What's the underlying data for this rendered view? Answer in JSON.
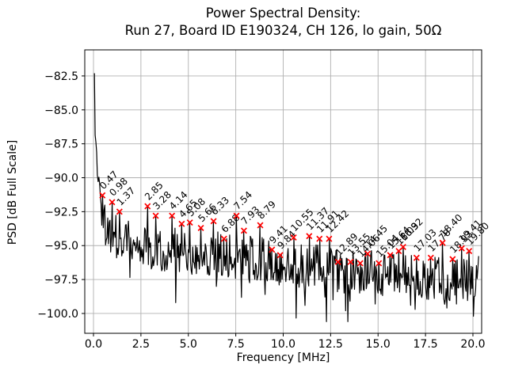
{
  "chart_data": {
    "type": "line",
    "title_line1": "Power Spectral Density:",
    "title_line2": "Run 27, Board ID E190324, CH 126, lo gain, 50Ω",
    "xlabel": "Frequency [MHz]",
    "ylabel": "PSD [dB Full Scale]",
    "x_ticks": [
      0.0,
      2.5,
      5.0,
      7.5,
      10.0,
      12.5,
      15.0,
      17.5,
      20.0
    ],
    "x_tick_labels": [
      "0.0",
      "2.5",
      "5.0",
      "7.5",
      "10.0",
      "12.5",
      "15.0",
      "17.5",
      "20.0"
    ],
    "y_ticks": [
      -82.5,
      -85.0,
      -87.5,
      -90.0,
      -92.5,
      -95.0,
      -97.5,
      -100.0
    ],
    "y_tick_labels": [
      "−82.5",
      "−85.0",
      "−87.5",
      "−90.0",
      "−92.5",
      "−95.0",
      "−97.5",
      "−100.0"
    ],
    "xlim": [
      -0.46,
      20.46
    ],
    "ylim": [
      -101.46,
      -80.58
    ],
    "grid": true,
    "grid_color": "#b0b0b0",
    "line_color": "#000000",
    "marker_color": "#ff0000",
    "marker_style": "x",
    "start_point": {
      "f": 0.05,
      "db": -82.3
    },
    "early_points": [
      [
        0.05,
        -82.3
      ],
      [
        0.1,
        -87.8
      ],
      [
        0.15,
        -87.6
      ],
      [
        0.22,
        -90.3
      ],
      [
        0.3,
        -89.9
      ],
      [
        0.38,
        -91.8
      ],
      [
        0.45,
        -92.4
      ]
    ],
    "baseline": [
      [
        0.5,
        -93.3
      ],
      [
        1.0,
        -94.2
      ],
      [
        2.0,
        -94.9
      ],
      [
        4.0,
        -95.3
      ],
      [
        6.0,
        -95.6
      ],
      [
        8.0,
        -95.8
      ],
      [
        10.0,
        -96.3
      ],
      [
        12.0,
        -96.6
      ],
      [
        14.0,
        -97.0
      ],
      [
        16.0,
        -97.2
      ],
      [
        18.0,
        -97.4
      ],
      [
        20.3,
        -97.4
      ]
    ],
    "noise_amplitude_db": 3.4,
    "deep_dips": [
      [
        4.35,
        -99.2
      ],
      [
        9.03,
        -98.6
      ],
      [
        12.62,
        -99.0
      ],
      [
        13.42,
        -100.6
      ],
      [
        14.85,
        -99.3
      ],
      [
        16.7,
        -99.4
      ],
      [
        18.62,
        -99.6
      ],
      [
        19.12,
        -99.3
      ]
    ],
    "peaks": [
      {
        "f": 0.47,
        "db": -91.3,
        "label": "0.47"
      },
      {
        "f": 0.98,
        "db": -91.8,
        "label": "0.98"
      },
      {
        "f": 1.37,
        "db": -92.5,
        "label": "1.37"
      },
      {
        "f": 2.85,
        "db": -92.1,
        "label": "2.85"
      },
      {
        "f": 3.28,
        "db": -92.8,
        "label": "3.28"
      },
      {
        "f": 4.14,
        "db": -92.8,
        "label": "4.14"
      },
      {
        "f": 4.65,
        "db": -93.4,
        "label": "4.65"
      },
      {
        "f": 5.08,
        "db": -93.3,
        "label": "5.08"
      },
      {
        "f": 5.66,
        "db": -93.7,
        "label": "5.66"
      },
      {
        "f": 6.33,
        "db": -93.2,
        "label": "6.33"
      },
      {
        "f": 6.88,
        "db": -94.5,
        "label": "6.88"
      },
      {
        "f": 7.54,
        "db": -92.8,
        "label": "7.54"
      },
      {
        "f": 7.93,
        "db": -93.9,
        "label": "7.93"
      },
      {
        "f": 8.79,
        "db": -93.5,
        "label": "8.79"
      },
      {
        "f": 9.41,
        "db": -95.3,
        "label": "9.41"
      },
      {
        "f": 9.84,
        "db": -95.7,
        "label": "9.84"
      },
      {
        "f": 10.55,
        "db": -94.4,
        "label": "10.55"
      },
      {
        "f": 11.37,
        "db": -94.3,
        "label": "11.37"
      },
      {
        "f": 11.91,
        "db": -94.5,
        "label": "11.91"
      },
      {
        "f": 12.42,
        "db": -94.5,
        "label": "12.42"
      },
      {
        "f": 12.89,
        "db": -96.2,
        "label": "12.89"
      },
      {
        "f": 13.55,
        "db": -96.2,
        "label": "13.55"
      },
      {
        "f": 14.06,
        "db": -96.3,
        "label": "14.06"
      },
      {
        "f": 14.45,
        "db": -95.6,
        "label": "14.45"
      },
      {
        "f": 15.04,
        "db": -96.3,
        "label": "15.04"
      },
      {
        "f": 15.64,
        "db": -95.7,
        "label": "15.64"
      },
      {
        "f": 16.09,
        "db": -95.4,
        "label": "16.09"
      },
      {
        "f": 16.32,
        "db": -95.1,
        "label": "16.32"
      },
      {
        "f": 17.03,
        "db": -95.9,
        "label": "17.03"
      },
      {
        "f": 17.78,
        "db": -95.9,
        "label": "17.78"
      },
      {
        "f": 18.4,
        "db": -94.8,
        "label": "18.40"
      },
      {
        "f": 18.93,
        "db": -96.0,
        "label": "18.93"
      },
      {
        "f": 19.41,
        "db": -95.2,
        "label": "19.41"
      },
      {
        "f": 19.8,
        "db": -95.4,
        "label": "19.80"
      }
    ]
  }
}
